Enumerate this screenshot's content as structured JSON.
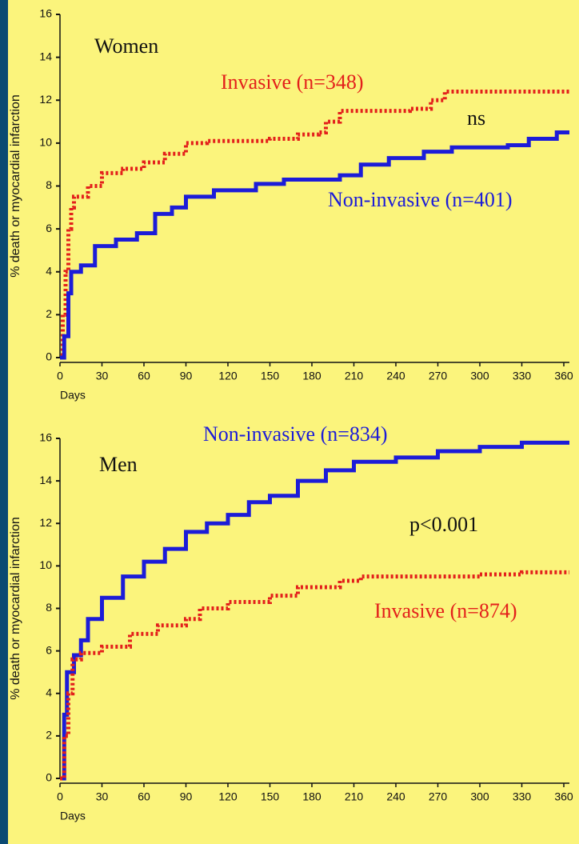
{
  "chart_data": [
    {
      "type": "line",
      "step": true,
      "title": "Women",
      "ylabel": "% death or myocardial infarction",
      "xlabel": "Days",
      "xlim": [
        0,
        364
      ],
      "ylim": [
        0,
        16
      ],
      "xticks": [
        0,
        30,
        60,
        90,
        120,
        150,
        180,
        210,
        240,
        270,
        300,
        330,
        360
      ],
      "yticks": [
        0,
        2,
        4,
        6,
        8,
        10,
        12,
        14,
        16
      ],
      "annotations": [
        "ns"
      ],
      "series": [
        {
          "name": "Invasive (n=348)",
          "color": "#e3201b",
          "dashed": true,
          "x": [
            0,
            2,
            4,
            6,
            8,
            10,
            20,
            30,
            45,
            60,
            75,
            90,
            105,
            150,
            170,
            185,
            190,
            200,
            250,
            265,
            275,
            364
          ],
          "values": [
            0,
            2,
            4,
            6,
            7,
            7.5,
            8,
            8.6,
            8.8,
            9.1,
            9.5,
            10,
            10.1,
            10.2,
            10.4,
            10.5,
            11,
            11.5,
            11.6,
            12,
            12.4,
            12.4
          ]
        },
        {
          "name": "Non-invasive (n=401)",
          "color": "#1c1cd8",
          "dashed": false,
          "x": [
            0,
            3,
            6,
            8,
            15,
            25,
            40,
            55,
            68,
            80,
            90,
            110,
            140,
            160,
            200,
            215,
            235,
            260,
            280,
            320,
            335,
            355,
            364
          ],
          "values": [
            0,
            1,
            3,
            4,
            4.3,
            5.2,
            5.5,
            5.8,
            6.7,
            7,
            7.5,
            7.8,
            8.1,
            8.3,
            8.5,
            9,
            9.3,
            9.6,
            9.8,
            9.9,
            10.2,
            10.5,
            10.5
          ]
        }
      ]
    },
    {
      "type": "line",
      "step": true,
      "title": "Men",
      "ylabel": "% death or myocardial infarction",
      "xlabel": "Days",
      "xlim": [
        0,
        364
      ],
      "ylim": [
        0,
        16
      ],
      "xticks": [
        0,
        30,
        60,
        90,
        120,
        150,
        180,
        210,
        240,
        270,
        300,
        330,
        360
      ],
      "yticks": [
        0,
        2,
        4,
        6,
        8,
        10,
        12,
        14,
        16
      ],
      "annotations": [
        "p<0.001"
      ],
      "series": [
        {
          "name": "Non-invasive (n=834)",
          "color": "#1c1cd8",
          "dashed": false,
          "x": [
            0,
            3,
            5,
            10,
            15,
            20,
            30,
            45,
            60,
            75,
            90,
            105,
            120,
            135,
            150,
            170,
            190,
            210,
            240,
            270,
            300,
            330,
            364
          ],
          "values": [
            0,
            3,
            5,
            5.8,
            6.5,
            7.5,
            8.5,
            9.5,
            10.2,
            10.8,
            11.6,
            12,
            12.4,
            13,
            13.3,
            14,
            14.5,
            14.9,
            15.1,
            15.4,
            15.6,
            15.8,
            15.8
          ]
        },
        {
          "name": "Invasive (n=874)",
          "color": "#e3201b",
          "dashed": true,
          "x": [
            0,
            3,
            6,
            9,
            15,
            30,
            50,
            70,
            90,
            100,
            120,
            150,
            170,
            200,
            215,
            260,
            300,
            330,
            364
          ],
          "values": [
            0,
            2,
            4,
            5.6,
            5.9,
            6.2,
            6.8,
            7.2,
            7.5,
            8,
            8.3,
            8.6,
            9,
            9.3,
            9.5,
            9.5,
            9.6,
            9.7,
            9.7
          ]
        }
      ]
    }
  ]
}
